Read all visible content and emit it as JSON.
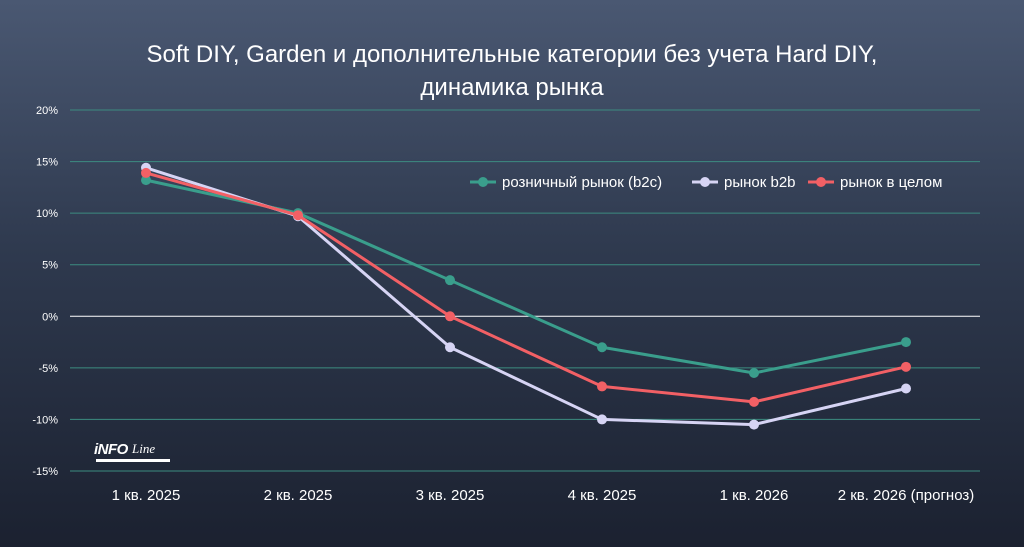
{
  "title_line1": "Soft DIY, Garden и дополнительные категории без учета Hard DIY,",
  "title_line2": "динамика рынка",
  "logo": {
    "main": "iNFO",
    "script": "Line"
  },
  "colors": {
    "b2c": "#3a9e8c",
    "b2b": "#d6d4f4",
    "total": "#f26065",
    "grid_teal": "#3c8c80",
    "grid_zero": "#ffffff"
  },
  "chart_data": {
    "type": "line",
    "title": "Soft DIY, Garden и дополнительные категории без учета Hard DIY, динамика рынка",
    "categories": [
      "1 кв. 2025",
      "2 кв. 2025",
      "3 кв. 2025",
      "4 кв. 2025",
      "1 кв. 2026",
      "2 кв. 2026 (прогноз)"
    ],
    "series": [
      {
        "name": "розничный рынок (b2c)",
        "color": "#3a9e8c",
        "values": [
          13.2,
          10.0,
          3.5,
          -3.0,
          -5.5,
          -2.5
        ]
      },
      {
        "name": "рынок b2b",
        "color": "#d6d4f4",
        "values": [
          14.4,
          9.7,
          -3.0,
          -10.0,
          -10.5,
          -7.0
        ]
      },
      {
        "name": "рынок в целом",
        "color": "#f26065",
        "values": [
          13.9,
          9.8,
          0.0,
          -6.8,
          -8.3,
          -4.9
        ]
      }
    ],
    "yticks": [
      "20%",
      "15%",
      "10%",
      "5%",
      "0%",
      "-5%",
      "-10%",
      "-15%"
    ],
    "ytick_values": [
      20,
      15,
      10,
      5,
      0,
      -5,
      -10,
      -15
    ],
    "ylim": [
      -15,
      20
    ],
    "grid": true,
    "legend_position": "top-right"
  }
}
